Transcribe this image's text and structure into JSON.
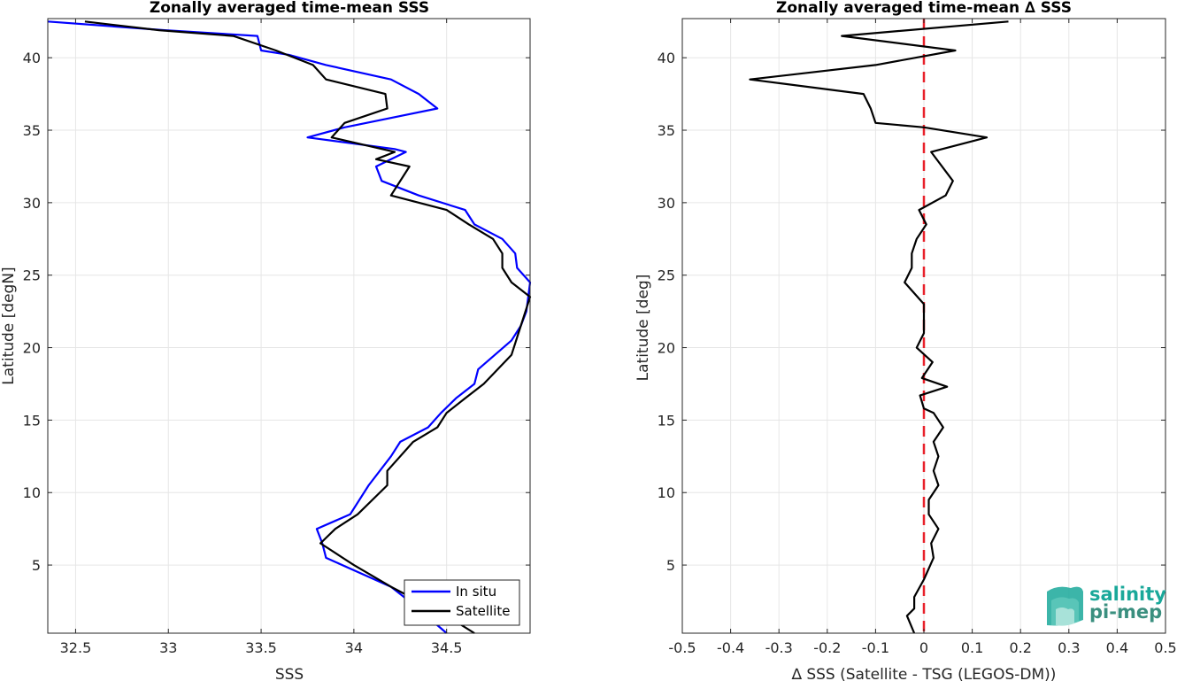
{
  "chart_data": [
    {
      "type": "line",
      "title": "Zonally averaged time-mean SSS",
      "xlabel": "SSS",
      "ylabel": "Latitude [degN]",
      "xlim": [
        32.35,
        34.95
      ],
      "ylim": [
        0.3,
        42.7
      ],
      "xticks": [
        "32.5",
        "33",
        "33.5",
        "34",
        "34.5"
      ],
      "xtick_values": [
        32.5,
        33,
        33.5,
        34,
        34.5
      ],
      "yticks": [
        "5",
        "10",
        "15",
        "20",
        "25",
        "30",
        "35",
        "40"
      ],
      "ytick_values": [
        5,
        10,
        15,
        20,
        25,
        30,
        35,
        40
      ],
      "grid": true,
      "legend_position": "bottom-right",
      "series": [
        {
          "name": "In situ",
          "color": "#0000ff",
          "x": [
            34.5,
            34.3,
            34.2,
            33.85,
            33.83,
            33.8,
            33.98,
            34.08,
            34.2,
            34.25,
            34.4,
            34.47,
            34.55,
            34.65,
            34.67,
            34.85,
            34.9,
            34.93,
            34.95,
            34.88,
            34.87,
            34.8,
            34.65,
            34.6,
            34.35,
            34.15,
            34.12,
            34.28,
            34.22,
            33.75,
            33.95,
            34.45,
            34.35,
            34.2,
            33.85,
            33.65,
            33.5,
            33.48,
            32.98,
            32.35
          ],
          "y": [
            0.3,
            2.5,
            3.5,
            5.5,
            6.5,
            7.5,
            8.5,
            10.5,
            12.5,
            13.5,
            14.5,
            15.5,
            16.5,
            17.5,
            18.5,
            20.5,
            21.5,
            22.5,
            24.5,
            25.5,
            26.5,
            27.5,
            28.5,
            29.5,
            30.5,
            31.5,
            32.5,
            33.5,
            33.7,
            34.5,
            35.2,
            36.5,
            37.5,
            38.5,
            39.5,
            40.2,
            40.5,
            41.5,
            41.9,
            42.5
          ]
        },
        {
          "name": "Satellite",
          "color": "#000000",
          "x": [
            34.65,
            34.5,
            34.35,
            34.2,
            34.0,
            33.82,
            33.9,
            34.02,
            34.18,
            34.18,
            34.32,
            34.45,
            34.5,
            34.6,
            34.7,
            34.85,
            34.9,
            34.95,
            34.85,
            34.8,
            34.8,
            34.75,
            34.62,
            34.5,
            34.2,
            34.3,
            34.12,
            34.22,
            33.88,
            33.95,
            34.18,
            34.17,
            33.85,
            33.78,
            33.58,
            33.35,
            32.95,
            32.55
          ],
          "y": [
            0.3,
            1.5,
            2.5,
            3.5,
            5.0,
            6.5,
            7.5,
            8.5,
            10.5,
            11.5,
            13.5,
            14.5,
            15.5,
            16.5,
            17.5,
            19.5,
            21.5,
            23.5,
            24.5,
            25.5,
            26.5,
            27.5,
            28.5,
            29.5,
            30.5,
            32.5,
            33.0,
            33.5,
            34.5,
            35.5,
            36.5,
            37.5,
            38.5,
            39.5,
            40.5,
            41.5,
            41.9,
            42.5
          ]
        }
      ]
    },
    {
      "type": "line",
      "title": "Zonally averaged time-mean ∆ SSS",
      "xlabel": "∆ SSS (Satellite - TSG (LEGOS-DM))",
      "ylabel": "Latitude [deg]",
      "xlim": [
        -0.5,
        0.5
      ],
      "ylim": [
        0.3,
        42.7
      ],
      "xticks": [
        "-0.5",
        "-0.4",
        "-0.3",
        "-0.2",
        "-0.1",
        "0",
        "0.1",
        "0.2",
        "0.3",
        "0.4",
        "0.5"
      ],
      "xtick_values": [
        -0.5,
        -0.4,
        -0.3,
        -0.2,
        -0.1,
        0,
        0.1,
        0.2,
        0.3,
        0.4,
        0.5
      ],
      "yticks": [
        "5",
        "10",
        "15",
        "20",
        "25",
        "30",
        "35",
        "40"
      ],
      "ytick_values": [
        5,
        10,
        15,
        20,
        25,
        30,
        35,
        40
      ],
      "grid": true,
      "zero_line_color": "#e8202a",
      "series": [
        {
          "color": "#000000",
          "x": [
            -0.02,
            -0.035,
            -0.02,
            -0.02,
            0.0,
            0.02,
            0.015,
            0.03,
            0.01,
            0.01,
            0.03,
            0.02,
            0.03,
            0.02,
            0.04,
            0.02,
            0.0,
            -0.008,
            0.048,
            -0.004,
            0.018,
            -0.015,
            0.0,
            0.0,
            0.0,
            -0.04,
            -0.025,
            -0.025,
            -0.015,
            0.005,
            -0.01,
            0.045,
            0.06,
            0.015,
            0.13,
            0.0,
            -0.1,
            -0.11,
            -0.125,
            -0.36,
            -0.1,
            0.065,
            -0.17,
            0.175
          ],
          "y": [
            0.3,
            1.5,
            2.0,
            2.8,
            4.0,
            5.5,
            6.5,
            7.5,
            8.5,
            9.5,
            10.5,
            11.5,
            12.5,
            13.5,
            14.5,
            15.5,
            15.8,
            16.7,
            17.3,
            17.9,
            19.0,
            20.0,
            21.0,
            22.0,
            23.0,
            24.5,
            25.5,
            26.5,
            27.5,
            28.5,
            29.5,
            30.5,
            31.5,
            33.5,
            34.5,
            35.2,
            35.5,
            36.5,
            37.5,
            38.5,
            39.5,
            40.5,
            41.5,
            42.5
          ]
        }
      ]
    }
  ],
  "logo": {
    "line1": "salinity",
    "line2": "pi-mep",
    "color1": "#1aa89a",
    "color2": "#3a8f7f"
  }
}
